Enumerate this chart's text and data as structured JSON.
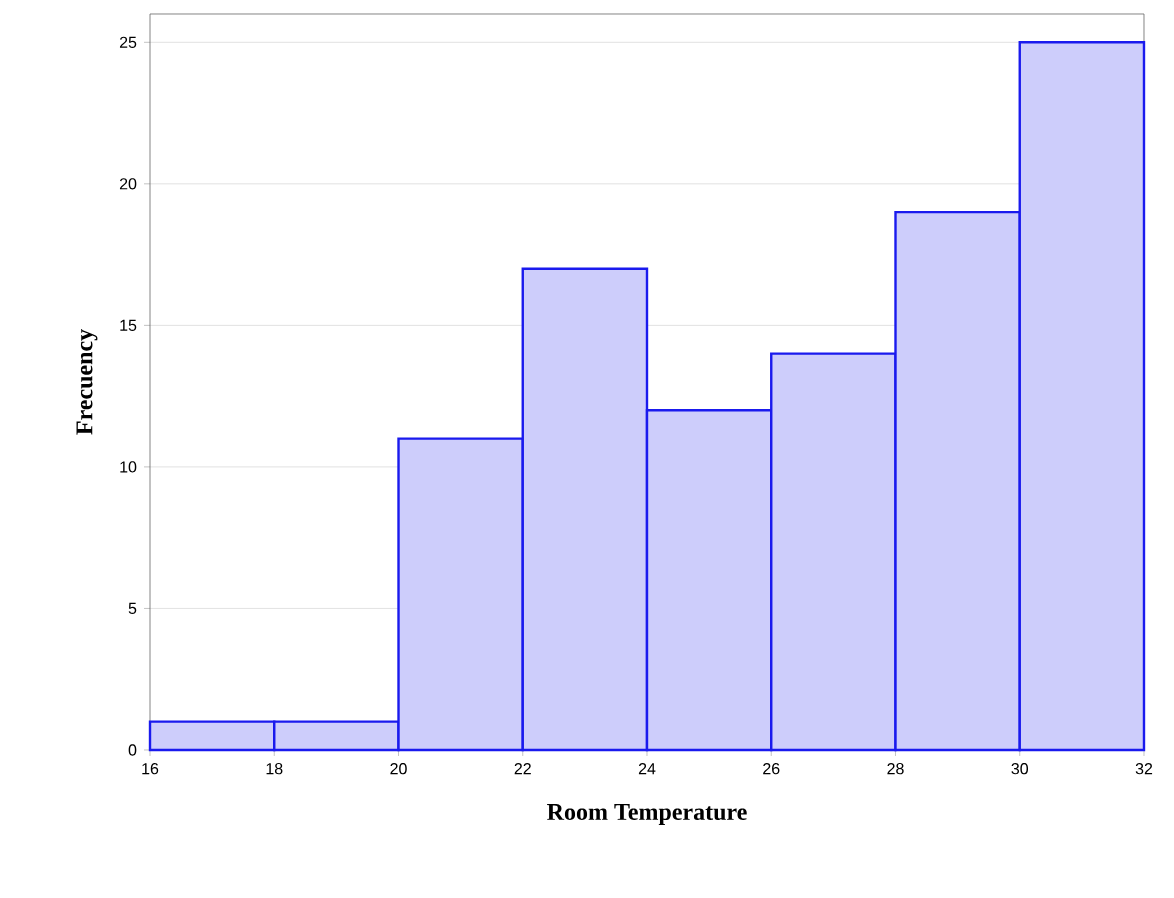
{
  "chart_data": {
    "type": "histogram",
    "xlabel": "Room Temperature",
    "ylabel": "Frecuency",
    "bins": [
      16,
      18,
      20,
      22,
      24,
      26,
      28,
      30,
      32
    ],
    "values": [
      1,
      1,
      11,
      17,
      12,
      14,
      19,
      25
    ],
    "color": "#cdcdfb",
    "xlim": [
      16,
      32
    ],
    "xticks": [
      16,
      18,
      20,
      22,
      24,
      26,
      28,
      30,
      32
    ],
    "ylim": [
      0,
      26
    ],
    "yticks": [
      0,
      5,
      10,
      15,
      20,
      25
    ],
    "grid": "y"
  }
}
